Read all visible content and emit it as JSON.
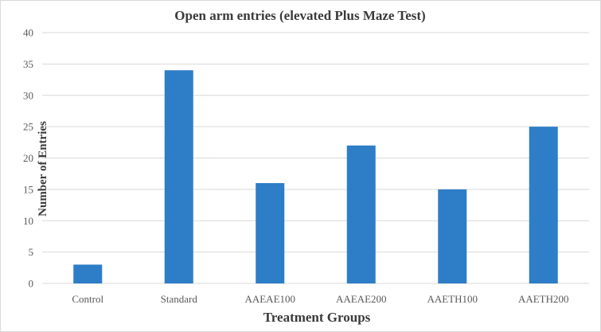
{
  "chart_data": {
    "type": "bar",
    "title": "Open arm entries (elevated Plus Maze Test)",
    "xlabel": "Treatment Groups",
    "ylabel": "Number of Entries",
    "categories": [
      "Control",
      "Standard",
      "AAEAE100",
      "AAEAE200",
      "AAETH100",
      "AAETH200"
    ],
    "values": [
      3,
      34,
      16,
      22,
      15,
      25
    ],
    "ylim": [
      0,
      40
    ],
    "yticks": [
      0,
      5,
      10,
      15,
      20,
      25,
      30,
      35,
      40
    ],
    "grid": true,
    "legend": "none",
    "bar_color": "#2e7dc7"
  }
}
